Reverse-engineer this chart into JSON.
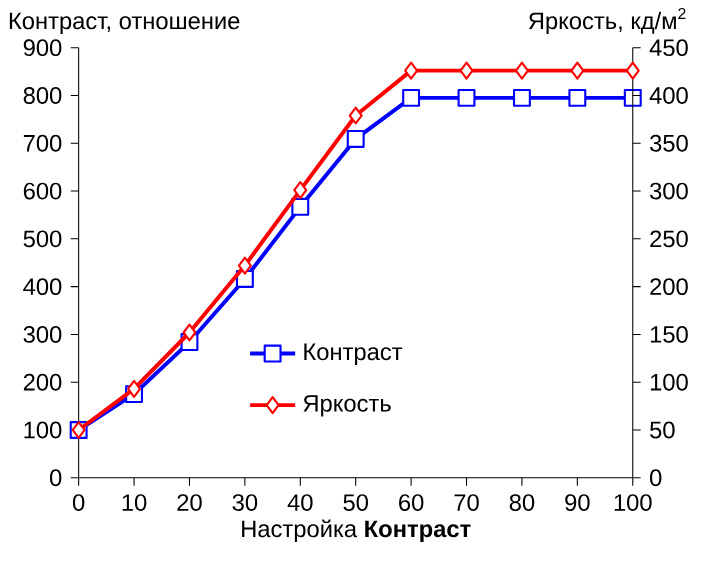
{
  "chart_data": {
    "type": "line",
    "xlabel": "Настройка **Контраст**",
    "ylabel": "Контраст, отношение",
    "y2label": "Яркость, кд/м$^{2}$",
    "x": [
      0,
      10,
      20,
      30,
      40,
      50,
      60,
      70,
      80,
      90,
      100
    ],
    "xlim": [
      0,
      100
    ],
    "xticks": [
      0,
      10,
      20,
      30,
      40,
      50,
      60,
      70,
      80,
      90,
      100
    ],
    "ylim": [
      0,
      900
    ],
    "yticks": [
      0,
      100,
      200,
      300,
      400,
      500,
      600,
      700,
      800,
      900
    ],
    "y2lim": [
      0,
      450
    ],
    "y2ticks": [
      0,
      50,
      100,
      150,
      200,
      250,
      300,
      350,
      400,
      450
    ],
    "grid": false,
    "legend": "bottom",
    "line_style": "solid",
    "series": [
      {
        "name": "Контраст",
        "color": "#0000ff",
        "marker": "square",
        "values": [
          100,
          175,
          284,
          416,
          567,
          709,
          795,
          795,
          795,
          795,
          795
        ]
      },
      {
        "name": "Яркость",
        "color": "#ff0000",
        "marker": "diamond",
        "axis": "y2",
        "values": [
          50,
          93,
          152,
          222,
          301,
          379,
          426,
          426,
          426,
          426,
          426
        ]
      }
    ]
  }
}
